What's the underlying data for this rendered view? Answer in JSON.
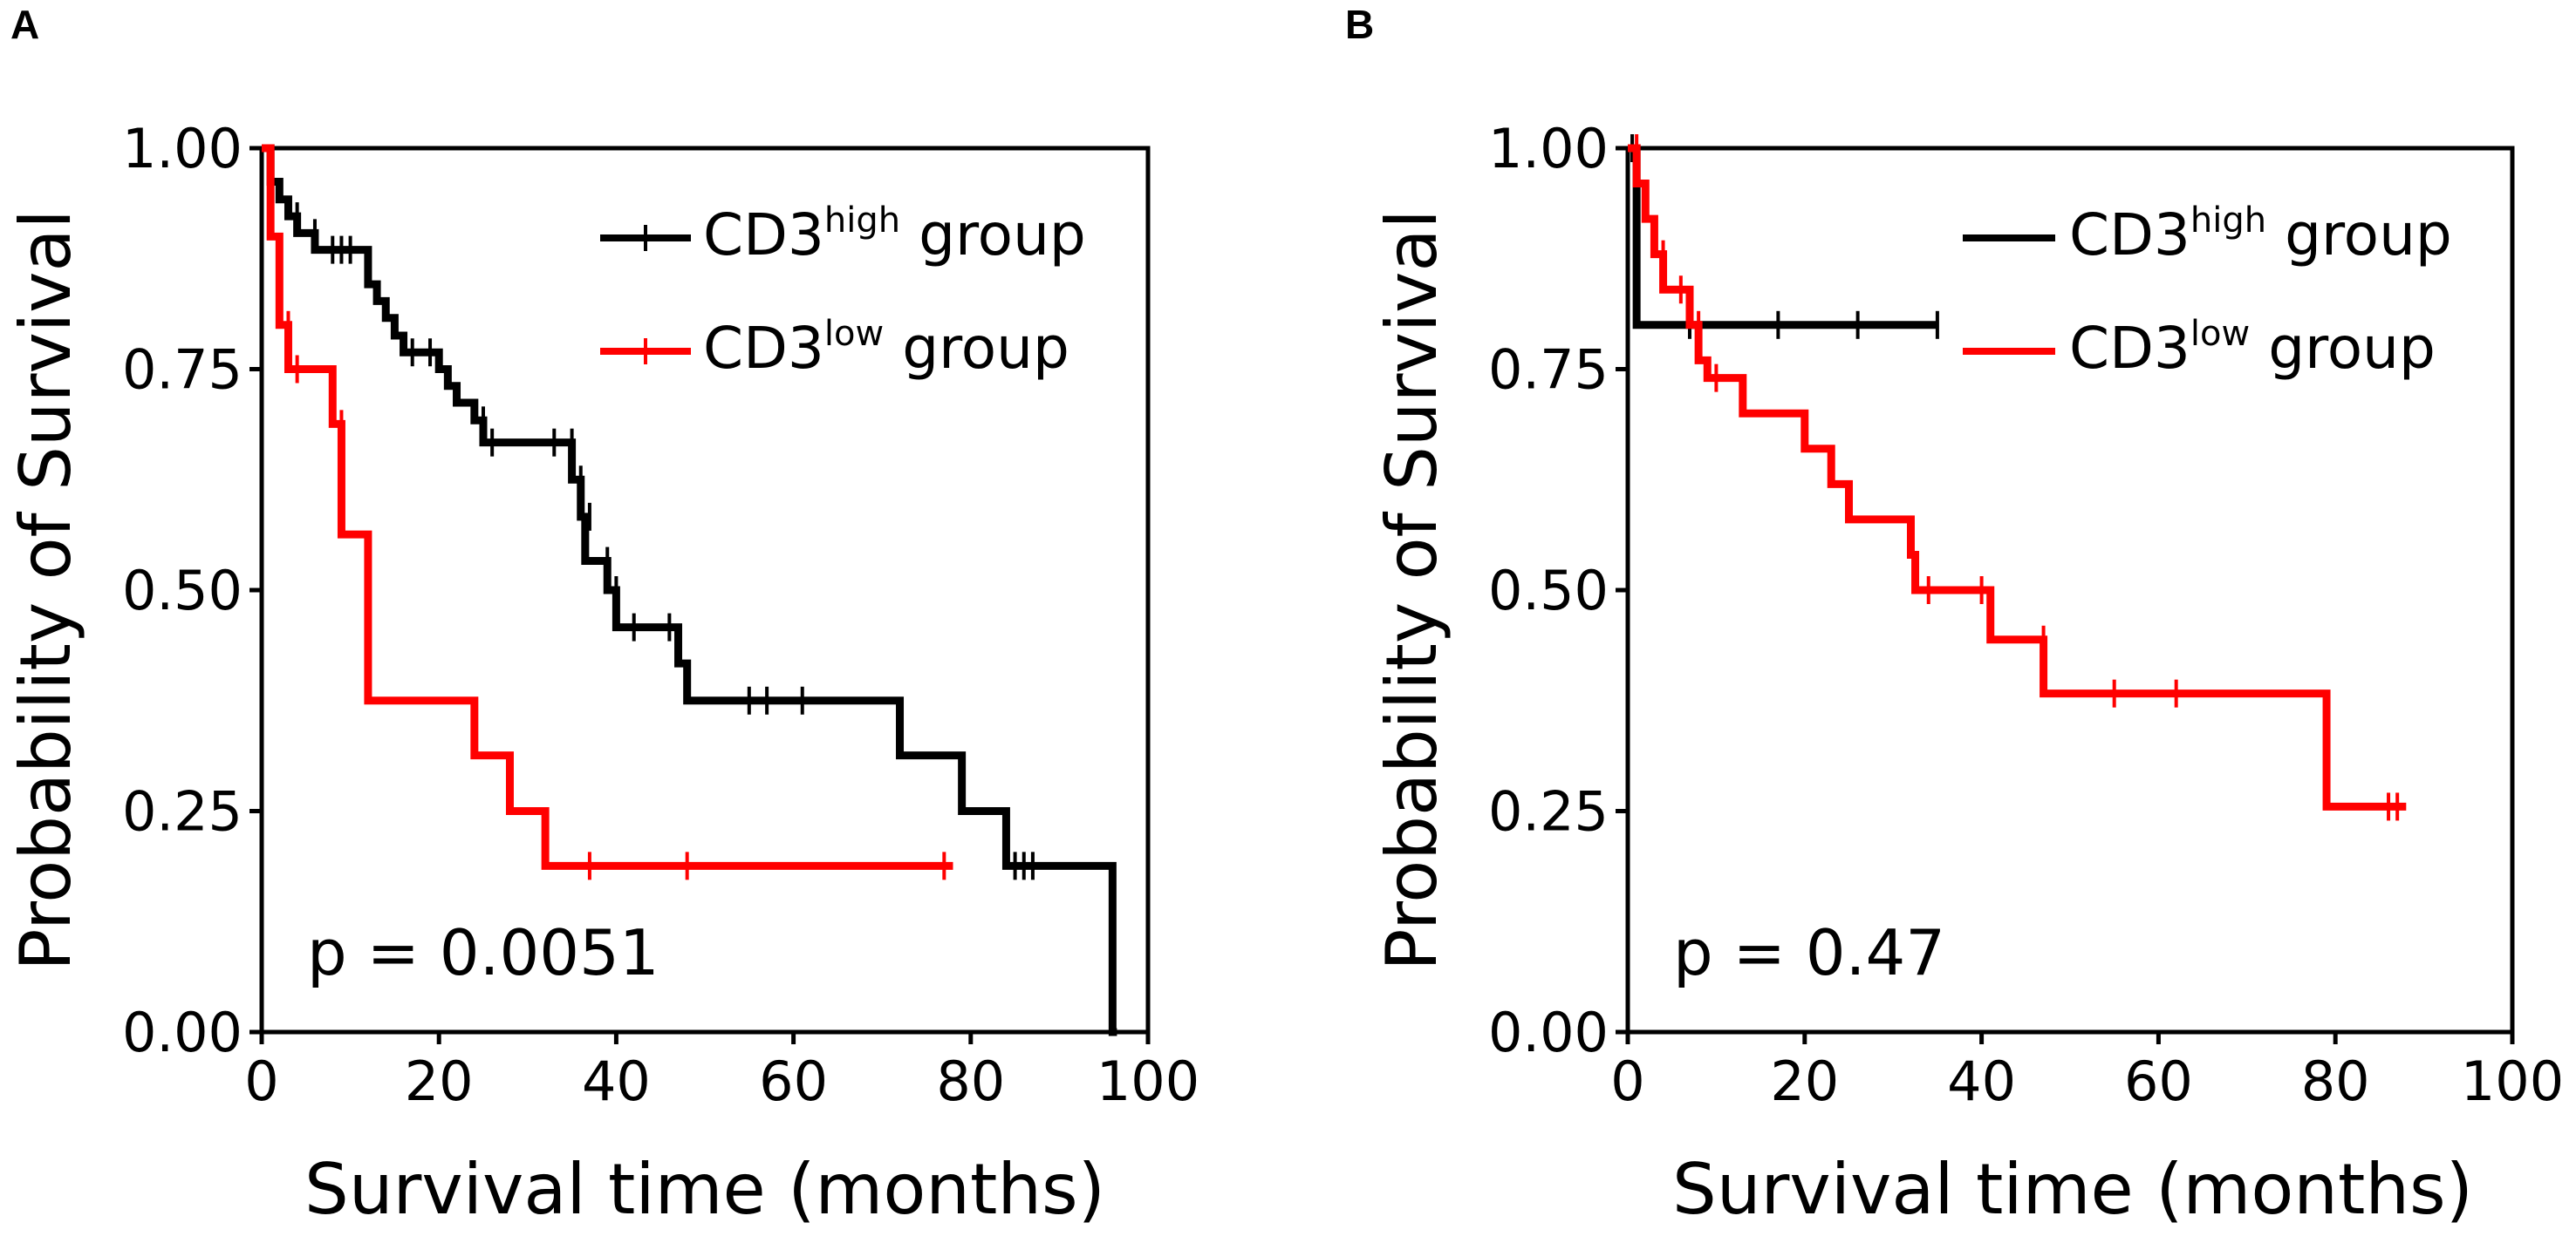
{
  "chart_data": [
    {
      "type": "line",
      "subtype": "kaplan-meier",
      "panel_label": "A",
      "xlabel": "Survival time (months)",
      "ylabel": "Probability of Survival",
      "xlim": [
        0,
        100
      ],
      "ylim": [
        0,
        1
      ],
      "xticks": [
        "0",
        "20",
        "40",
        "60",
        "80",
        "100"
      ],
      "yticks": [
        "0.00",
        "0.25",
        "0.50",
        "0.75",
        "1.00"
      ],
      "grid": false,
      "legend_position": "top-right",
      "annotation": "p = 0.0051",
      "series": [
        {
          "name": "CD3high group",
          "label_base": "CD3",
          "label_sup": "high",
          "label_suffix": " group",
          "color": "#000000",
          "steps": [
            [
              0,
              1.0
            ],
            [
              1,
              0.962
            ],
            [
              2,
              0.942
            ],
            [
              3,
              0.923
            ],
            [
              4,
              0.904
            ],
            [
              6,
              0.885
            ],
            [
              12,
              0.846
            ],
            [
              13,
              0.827
            ],
            [
              14,
              0.808
            ],
            [
              15,
              0.788
            ],
            [
              16,
              0.769
            ],
            [
              20,
              0.75
            ],
            [
              21,
              0.731
            ],
            [
              22,
              0.712
            ],
            [
              24,
              0.692
            ],
            [
              25,
              0.667
            ],
            [
              35,
              0.625
            ],
            [
              36,
              0.583
            ],
            [
              36.5,
              0.533
            ],
            [
              39,
              0.5
            ],
            [
              40,
              0.458
            ],
            [
              47,
              0.417
            ],
            [
              48,
              0.375
            ],
            [
              72,
              0.313
            ],
            [
              79,
              0.25
            ],
            [
              84,
              0.188
            ],
            [
              96,
              0.0
            ]
          ],
          "censors": [
            [
              4,
              0.923
            ],
            [
              6,
              0.904
            ],
            [
              8,
              0.885
            ],
            [
              9,
              0.885
            ],
            [
              10,
              0.885
            ],
            [
              17,
              0.769
            ],
            [
              19,
              0.769
            ],
            [
              25,
              0.692
            ],
            [
              26,
              0.667
            ],
            [
              33,
              0.667
            ],
            [
              35,
              0.667
            ],
            [
              36,
              0.625
            ],
            [
              37,
              0.583
            ],
            [
              39,
              0.533
            ],
            [
              40,
              0.5
            ],
            [
              42,
              0.458
            ],
            [
              46,
              0.458
            ],
            [
              55,
              0.375
            ],
            [
              57,
              0.375
            ],
            [
              61,
              0.375
            ],
            [
              85,
              0.188
            ],
            [
              86,
              0.188
            ],
            [
              87,
              0.188
            ]
          ],
          "end_x": 96.5
        },
        {
          "name": "CD3low group",
          "label_base": "CD3",
          "label_sup": "low",
          "label_suffix": " group",
          "color": "#ff0000",
          "steps": [
            [
              0,
              1.0
            ],
            [
              1,
              0.9
            ],
            [
              2,
              0.8
            ],
            [
              3,
              0.75
            ],
            [
              8,
              0.688
            ],
            [
              9,
              0.563
            ],
            [
              12,
              0.375
            ],
            [
              24,
              0.313
            ],
            [
              28,
              0.25
            ],
            [
              32,
              0.188
            ]
          ],
          "censors": [
            [
              3,
              0.8
            ],
            [
              4,
              0.75
            ],
            [
              9,
              0.688
            ],
            [
              37,
              0.188
            ],
            [
              48,
              0.188
            ],
            [
              77,
              0.188
            ]
          ],
          "end_x": 78
        }
      ]
    },
    {
      "type": "line",
      "subtype": "kaplan-meier",
      "panel_label": "B",
      "xlabel": "Survival time (months)",
      "ylabel": "Probability of Survival",
      "xlim": [
        0,
        100
      ],
      "ylim": [
        0,
        1
      ],
      "xticks": [
        "0",
        "20",
        "40",
        "60",
        "80",
        "100"
      ],
      "yticks": [
        "0.00",
        "0.25",
        "0.50",
        "0.75",
        "1.00"
      ],
      "grid": false,
      "legend_position": "top-right",
      "annotation": "p = 0.47",
      "series": [
        {
          "name": "CD3high group",
          "label_base": "CD3",
          "label_sup": "high",
          "label_suffix": " group",
          "color": "#000000",
          "steps": [
            [
              0,
              1.0
            ],
            [
              1,
              0.8
            ]
          ],
          "censors": [
            [
              0.5,
              1.0
            ],
            [
              7,
              0.8
            ],
            [
              17,
              0.8
            ],
            [
              26,
              0.8
            ],
            [
              35,
              0.8
            ]
          ],
          "end_x": 35
        },
        {
          "name": "CD3low group",
          "label_base": "CD3",
          "label_sup": "low",
          "label_suffix": " group",
          "color": "#ff0000",
          "steps": [
            [
              0,
              1.0
            ],
            [
              1,
              0.96
            ],
            [
              2,
              0.92
            ],
            [
              3,
              0.88
            ],
            [
              4,
              0.84
            ],
            [
              7,
              0.8
            ],
            [
              8,
              0.76
            ],
            [
              9,
              0.74
            ],
            [
              13,
              0.7
            ],
            [
              20,
              0.66
            ],
            [
              23,
              0.62
            ],
            [
              25,
              0.58
            ],
            [
              32,
              0.54
            ],
            [
              32.5,
              0.5
            ],
            [
              41,
              0.444
            ],
            [
              47,
              0.383
            ],
            [
              79,
              0.255
            ]
          ],
          "censors": [
            [
              1,
              1.0
            ],
            [
              4,
              0.88
            ],
            [
              6,
              0.84
            ],
            [
              8,
              0.8
            ],
            [
              10,
              0.74
            ],
            [
              34,
              0.5
            ],
            [
              40,
              0.5
            ],
            [
              47,
              0.444
            ],
            [
              55,
              0.383
            ],
            [
              62,
              0.383
            ],
            [
              86,
              0.255
            ],
            [
              87,
              0.255
            ]
          ],
          "end_x": 88
        }
      ]
    }
  ]
}
